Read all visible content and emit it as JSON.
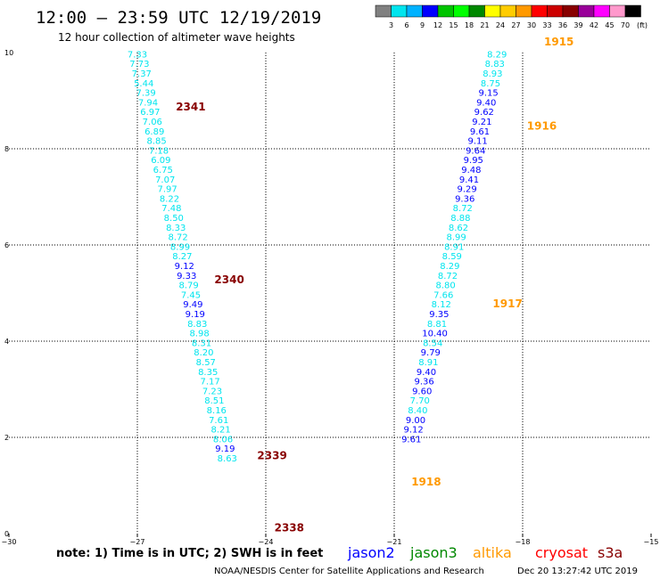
{
  "header": {
    "title": "12:00 – 23:59 UTC 12/19/2019",
    "subtitle": "12 hour collection of altimeter wave heights"
  },
  "legend": {
    "ticks": [
      "3",
      "6",
      "9",
      "12",
      "15",
      "18",
      "21",
      "24",
      "27",
      "30",
      "33",
      "36",
      "39",
      "42",
      "45",
      "70"
    ],
    "unit": "(ft)",
    "colors": [
      "#808080",
      "#00e5ee",
      "#00b2ff",
      "#0000ff",
      "#00c400",
      "#00ff00",
      "#008800",
      "#ffff00",
      "#ffcc00",
      "#ff9900",
      "#ff0000",
      "#cc0000",
      "#880000",
      "#990099",
      "#ff00ff",
      "#ff99cc",
      "#000000"
    ]
  },
  "axes": {
    "x_ticks": [
      "−30",
      "−27",
      "−24",
      "−21",
      "−18",
      "−15"
    ],
    "y_ticks": [
      "0",
      "2",
      "4",
      "6",
      "8",
      "10"
    ]
  },
  "footer": {
    "note": "note:  1) Time is in UTC; 2) SWH is in feet",
    "satellites": [
      {
        "name": "jason2",
        "color": "#0000ff"
      },
      {
        "name": "jason3",
        "color": "#008800"
      },
      {
        "name": "altika",
        "color": "#ff9900"
      },
      {
        "name": "cryosat",
        "color": "#ff0000"
      },
      {
        "name": "s3a",
        "color": "#880000"
      }
    ],
    "credit": "NOAA/NESDIS Center for Satellite Applications and Research",
    "timestamp": "Dec 20 13:27:42 UTC 2019"
  },
  "chart_data": {
    "type": "scatter",
    "title": "12:00 – 23:59 UTC 12/19/2019",
    "subtitle": "12 hour collection of altimeter wave heights",
    "xlim": [
      -30,
      -15
    ],
    "ylim": [
      0,
      10
    ],
    "grid": true,
    "units": "ft",
    "series": [
      {
        "name": "s3a",
        "color": "#880000",
        "time_labels": [
          {
            "text": "2341",
            "x": -26.1,
            "y": 8.8
          },
          {
            "text": "2340",
            "x": -25.2,
            "y": 5.2
          },
          {
            "text": "2339",
            "x": -24.2,
            "y": 1.55
          },
          {
            "text": "2338",
            "x": -23.8,
            "y": 0.05
          }
        ],
        "points": [
          {
            "x": -27.0,
            "y": 9.9,
            "v": "7.33"
          },
          {
            "x": -26.95,
            "y": 9.7,
            "v": "7.73"
          },
          {
            "x": -26.9,
            "y": 9.5,
            "v": "7.37"
          },
          {
            "x": -26.85,
            "y": 9.3,
            "v": "5.44"
          },
          {
            "x": -26.8,
            "y": 9.1,
            "v": "7.39"
          },
          {
            "x": -26.75,
            "y": 8.9,
            "v": "7.94"
          },
          {
            "x": -26.7,
            "y": 8.7,
            "v": "6.97"
          },
          {
            "x": -26.65,
            "y": 8.5,
            "v": "7.06"
          },
          {
            "x": -26.6,
            "y": 8.3,
            "v": "6.89"
          },
          {
            "x": -26.55,
            "y": 8.1,
            "v": "8.85"
          },
          {
            "x": -26.5,
            "y": 7.9,
            "v": "7.18"
          },
          {
            "x": -26.45,
            "y": 7.7,
            "v": "6.09"
          },
          {
            "x": -26.4,
            "y": 7.5,
            "v": "6.75"
          },
          {
            "x": -26.35,
            "y": 7.3,
            "v": "7.07"
          },
          {
            "x": -26.3,
            "y": 7.1,
            "v": "7.97"
          },
          {
            "x": -26.25,
            "y": 6.9,
            "v": "8.22"
          },
          {
            "x": -26.2,
            "y": 6.7,
            "v": "7.48"
          },
          {
            "x": -26.15,
            "y": 6.5,
            "v": "8.50"
          },
          {
            "x": -26.1,
            "y": 6.3,
            "v": "8.33"
          },
          {
            "x": -26.05,
            "y": 6.1,
            "v": "8.72"
          },
          {
            "x": -26.0,
            "y": 5.9,
            "v": "8.99"
          },
          {
            "x": -25.95,
            "y": 5.7,
            "v": "8.27"
          },
          {
            "x": -25.9,
            "y": 5.5,
            "v": "9.12"
          },
          {
            "x": -25.85,
            "y": 5.3,
            "v": "9.33"
          },
          {
            "x": -25.8,
            "y": 5.1,
            "v": "8.79"
          },
          {
            "x": -25.75,
            "y": 4.9,
            "v": "7.45"
          },
          {
            "x": -25.7,
            "y": 4.7,
            "v": "9.49"
          },
          {
            "x": -25.65,
            "y": 4.5,
            "v": "9.19"
          },
          {
            "x": -25.6,
            "y": 4.3,
            "v": "8.83"
          },
          {
            "x": -25.55,
            "y": 4.1,
            "v": "8.98"
          },
          {
            "x": -25.5,
            "y": 3.9,
            "v": "8.31"
          },
          {
            "x": -25.45,
            "y": 3.7,
            "v": "8.20"
          },
          {
            "x": -25.4,
            "y": 3.5,
            "v": "8.57"
          },
          {
            "x": -25.35,
            "y": 3.3,
            "v": "8.35"
          },
          {
            "x": -25.3,
            "y": 3.1,
            "v": "7.17"
          },
          {
            "x": -25.25,
            "y": 2.9,
            "v": "7.23"
          },
          {
            "x": -25.2,
            "y": 2.7,
            "v": "8.51"
          },
          {
            "x": -25.15,
            "y": 2.5,
            "v": "8.16"
          },
          {
            "x": -25.1,
            "y": 2.3,
            "v": "7.61"
          },
          {
            "x": -25.05,
            "y": 2.1,
            "v": "8.21"
          },
          {
            "x": -25.0,
            "y": 1.9,
            "v": "8.06"
          },
          {
            "x": -24.95,
            "y": 1.7,
            "v": "9.19"
          },
          {
            "x": -24.9,
            "y": 1.5,
            "v": "8.63"
          }
        ]
      },
      {
        "name": "altika",
        "color": "#ff9900",
        "time_labels": [
          {
            "text": "1915",
            "x": -17.5,
            "y": 10.15
          },
          {
            "text": "1916",
            "x": -17.9,
            "y": 8.4
          },
          {
            "text": "1917",
            "x": -18.7,
            "y": 4.7
          },
          {
            "text": "1918",
            "x": -20.6,
            "y": 1.0
          }
        ],
        "points": [
          {
            "x": -18.6,
            "y": 9.9,
            "v": "8.29"
          },
          {
            "x": -18.65,
            "y": 9.7,
            "v": "8.83"
          },
          {
            "x": -18.7,
            "y": 9.5,
            "v": "8.93"
          },
          {
            "x": -18.75,
            "y": 9.3,
            "v": "8.75"
          },
          {
            "x": -18.8,
            "y": 9.1,
            "v": "9.15"
          },
          {
            "x": -18.85,
            "y": 8.9,
            "v": "9.40"
          },
          {
            "x": -18.9,
            "y": 8.7,
            "v": "9.62"
          },
          {
            "x": -18.95,
            "y": 8.5,
            "v": "9.21"
          },
          {
            "x": -19.0,
            "y": 8.3,
            "v": "9.61"
          },
          {
            "x": -19.05,
            "y": 8.1,
            "v": "9.11"
          },
          {
            "x": -19.1,
            "y": 7.9,
            "v": "9.64"
          },
          {
            "x": -19.15,
            "y": 7.7,
            "v": "9.95"
          },
          {
            "x": -19.2,
            "y": 7.5,
            "v": "9.48"
          },
          {
            "x": -19.25,
            "y": 7.3,
            "v": "9.41"
          },
          {
            "x": -19.3,
            "y": 7.1,
            "v": "9.29"
          },
          {
            "x": -19.35,
            "y": 6.9,
            "v": "9.36"
          },
          {
            "x": -19.4,
            "y": 6.7,
            "v": "8.72"
          },
          {
            "x": -19.45,
            "y": 6.5,
            "v": "8.88"
          },
          {
            "x": -19.5,
            "y": 6.3,
            "v": "8.62"
          },
          {
            "x": -19.55,
            "y": 6.1,
            "v": "8.99"
          },
          {
            "x": -19.6,
            "y": 5.9,
            "v": "8.91"
          },
          {
            "x": -19.65,
            "y": 5.7,
            "v": "8.59"
          },
          {
            "x": -19.7,
            "y": 5.5,
            "v": "8.29"
          },
          {
            "x": -19.75,
            "y": 5.3,
            "v": "8.72"
          },
          {
            "x": -19.8,
            "y": 5.1,
            "v": "8.80"
          },
          {
            "x": -19.85,
            "y": 4.9,
            "v": "7.66"
          },
          {
            "x": -19.9,
            "y": 4.7,
            "v": "8.12"
          },
          {
            "x": -19.95,
            "y": 4.5,
            "v": "9.35"
          },
          {
            "x": -20.0,
            "y": 4.3,
            "v": "8.81"
          },
          {
            "x": -20.05,
            "y": 4.1,
            "v": "10.40"
          },
          {
            "x": -20.1,
            "y": 3.9,
            "v": "8.54"
          },
          {
            "x": -20.15,
            "y": 3.7,
            "v": "9.79"
          },
          {
            "x": -20.2,
            "y": 3.5,
            "v": "8.91"
          },
          {
            "x": -20.25,
            "y": 3.3,
            "v": "9.40"
          },
          {
            "x": -20.3,
            "y": 3.1,
            "v": "9.36"
          },
          {
            "x": -20.35,
            "y": 2.9,
            "v": "9.60"
          },
          {
            "x": -20.4,
            "y": 2.7,
            "v": "7.70"
          },
          {
            "x": -20.45,
            "y": 2.5,
            "v": "8.40"
          },
          {
            "x": -20.5,
            "y": 2.3,
            "v": "9.00"
          },
          {
            "x": -20.55,
            "y": 2.1,
            "v": "9.12"
          },
          {
            "x": -20.6,
            "y": 1.9,
            "v": "9.61"
          }
        ]
      }
    ]
  }
}
